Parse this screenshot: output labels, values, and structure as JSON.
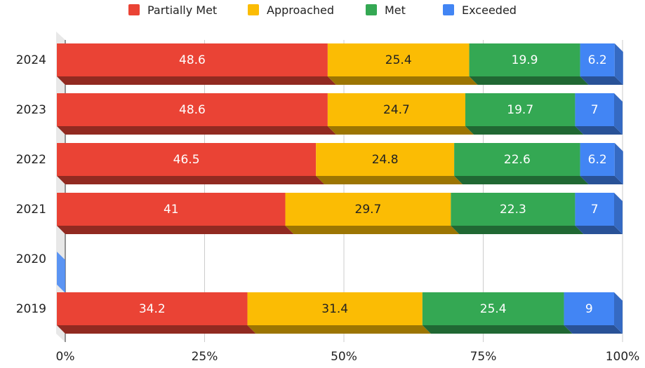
{
  "chart_data": {
    "type": "bar",
    "orientation": "horizontal",
    "stacked": true,
    "percent_stacked": true,
    "three_d": true,
    "categories": [
      "2024",
      "2023",
      "2022",
      "2021",
      "2020",
      "2019"
    ],
    "series": [
      {
        "name": "Partially Met",
        "color": "#ea4335",
        "values": [
          48.6,
          48.6,
          46.5,
          41,
          null,
          34.2
        ]
      },
      {
        "name": "Approached",
        "color": "#fbbc04",
        "values": [
          25.4,
          24.7,
          24.8,
          29.7,
          null,
          31.4
        ]
      },
      {
        "name": "Met",
        "color": "#34a853",
        "values": [
          19.9,
          19.7,
          22.6,
          22.3,
          null,
          25.4
        ]
      },
      {
        "name": "Exceeded",
        "color": "#4285f4",
        "values": [
          6.2,
          7,
          6.2,
          7,
          null,
          9
        ]
      }
    ],
    "x_ticks": [
      "0%",
      "25%",
      "50%",
      "75%",
      "100%"
    ],
    "xlim": [
      0,
      100
    ],
    "grid": true,
    "legend_position": "top",
    "title": "",
    "xlabel": "",
    "ylabel": ""
  }
}
